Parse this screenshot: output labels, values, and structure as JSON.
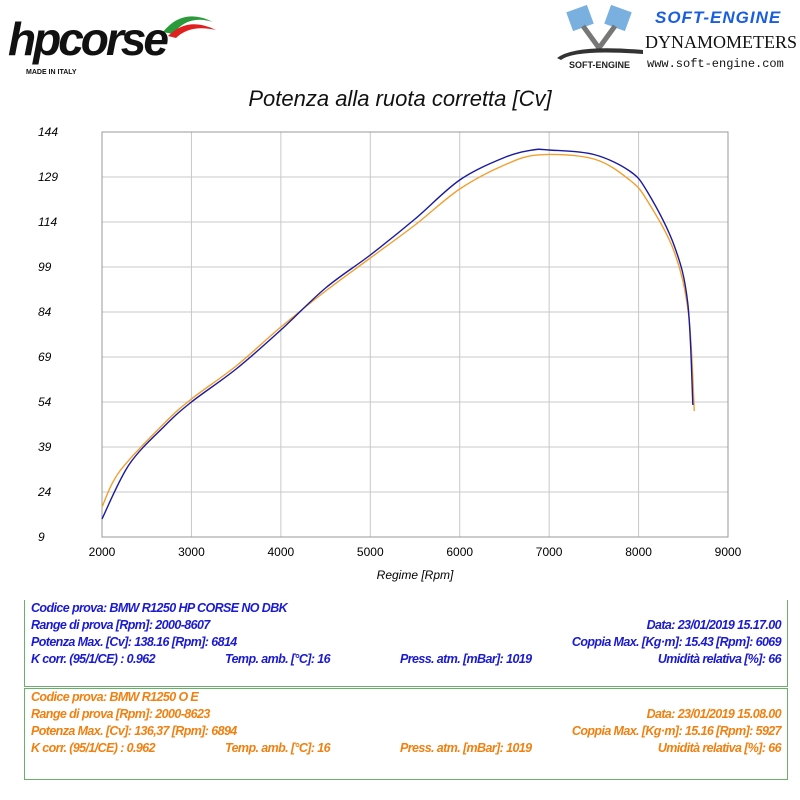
{
  "logos": {
    "left_main": "hpcorse",
    "left_sub": "MADE IN ITALY",
    "right_brand": "SOFT-ENGINE",
    "right_title": "DYNAMOMETERS",
    "right_url": "www.soft-engine.com",
    "right_mark": "SOFT-ENGINE"
  },
  "colors": {
    "series1": "#1a1aa0",
    "series2": "#f0a030",
    "panel1_text": "#1a1ad0",
    "panel2_text": "#f08010",
    "grid": "#c8c8c8"
  },
  "chart_data": {
    "type": "line",
    "title": "Potenza alla ruota corretta [Cv]",
    "xlabel": "Regime [Rpm]",
    "ylabel": "",
    "xlim": [
      2000,
      9000
    ],
    "ylim": [
      9,
      144
    ],
    "xticks": [
      "2000",
      "3000",
      "4000",
      "5000",
      "6000",
      "7000",
      "8000",
      "9000"
    ],
    "yticks": [
      "9",
      "24",
      "39",
      "54",
      "69",
      "84",
      "99",
      "114",
      "129",
      "144"
    ],
    "grid": true,
    "series": [
      {
        "color": "#1a1aa0",
        "x": [
          2000,
          2300,
          2700,
          3000,
          3500,
          4000,
          4500,
          5000,
          5500,
          6000,
          6500,
          6814,
          7000,
          7500,
          7900,
          8100,
          8400,
          8550,
          8607
        ],
        "y": [
          15,
          33,
          46,
          54,
          65,
          78,
          92,
          103,
          115,
          128,
          135.5,
          138,
          138,
          136.5,
          131,
          124,
          106,
          87,
          53
        ]
      },
      {
        "color": "#f0a030",
        "x": [
          2000,
          2200,
          2700,
          3000,
          3500,
          4000,
          4500,
          5000,
          5500,
          6000,
          6500,
          6894,
          7500,
          7900,
          8100,
          8400,
          8560,
          8623
        ],
        "y": [
          19,
          31,
          47,
          55,
          66,
          79,
          91,
          102,
          113,
          125,
          133,
          136.4,
          135,
          128,
          121,
          104,
          83,
          51
        ]
      }
    ]
  },
  "panel1": {
    "codice": "Codice prova: BMW R1250 HP CORSE NO DBK",
    "range": "Range di prova [Rpm]: 2000-8607",
    "data": "Data: 23/01/2019   15.17.00",
    "potenza": "Potenza Max. [Cv]: 138.16  [Rpm]: 6814",
    "coppia": "Coppia Max. [Kg·m]: 15.43  [Rpm]: 6069",
    "kcorr": "K corr. (95/1/CE) : 0.962",
    "temp": "Temp. amb. [°C]: 16",
    "press": "Press. atm. [mBar]: 1019",
    "umid": "Umidità relativa [%]: 66"
  },
  "panel2": {
    "codice": "Codice prova: BMW R1250 O E",
    "range": "Range di prova [Rpm]: 2000-8623",
    "data": "Data: 23/01/2019   15.08.00",
    "potenza": "Potenza Max. [Cv]: 136,37  [Rpm]: 6894",
    "coppia": "Coppia Max. [Kg·m]: 15.16  [Rpm]: 5927",
    "kcorr": "K corr. (95/1/CE) : 0.962",
    "temp": "Temp. amb. [°C]: 16",
    "press": "Press. atm. [mBar]: 1019",
    "umid": "Umidità relativa [%]: 66"
  }
}
